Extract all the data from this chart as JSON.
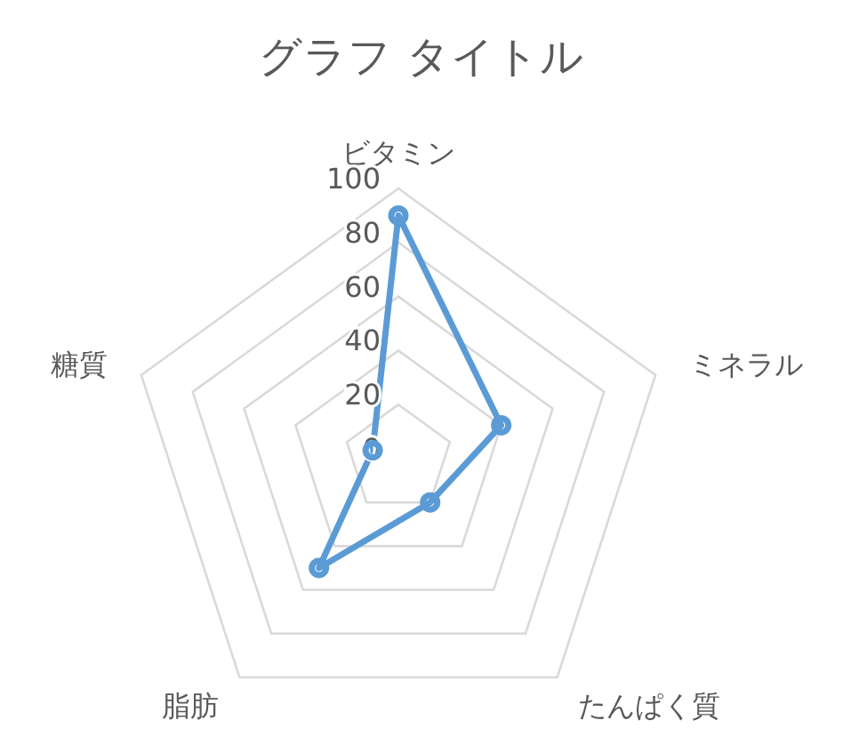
{
  "chart_data": {
    "type": "radar",
    "title": "グラフ タイトル",
    "categories": [
      "ビタミン",
      "ミネラル",
      "たんぱく質",
      "脂肪",
      "糖質"
    ],
    "series": [
      {
        "color": "#5b9bd5",
        "values": [
          90,
          40,
          20,
          50,
          10
        ]
      }
    ],
    "ylim": [
      0,
      100
    ],
    "yticks": [
      0,
      20,
      40,
      60,
      80,
      100
    ],
    "grid": true,
    "marker": "circle",
    "line_style": "solid",
    "legend": false
  }
}
